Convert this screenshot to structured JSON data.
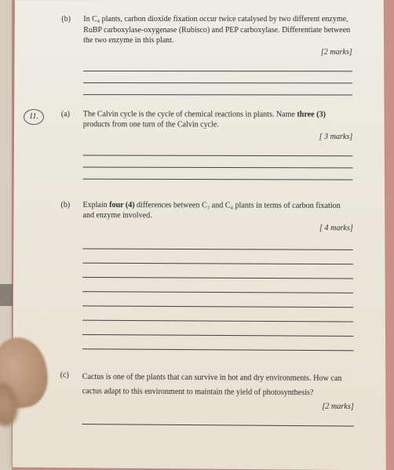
{
  "q10b": {
    "label": "(b)",
    "text": "In C₄ plants, carbon dioxide fixation occur twice catalysed by two different enzyme, RuBP carboxylase-oxygenase (Rubisco) and PEP carboxylase. Differentiate between the two enzyme in this plant.",
    "marks": "[2 marks]"
  },
  "q11": {
    "num": "11."
  },
  "q11a": {
    "label": "(a)",
    "text_pre": "The Calvin cycle is the cycle of chemical reactions in plants. Name ",
    "bold1": "three (3)",
    "text_post": " products from one turn of the Calvin cycle.",
    "marks": "[ 3 marks]"
  },
  "q11b": {
    "label": "(b)",
    "text_pre": "Explain ",
    "bold1": "four (4)",
    "text_post": " differences between C₃ and C₄ plants in terms of carbon fixation and enzyme involved.",
    "marks": "[ 4 marks]"
  },
  "q11c": {
    "label": "(c)",
    "text": "Cactus is one of the plants that can survive in hot and dry environments. How can cactus adapt to this environment to maintain the yield of photosynthesis?",
    "marks": "[2 marks]"
  }
}
